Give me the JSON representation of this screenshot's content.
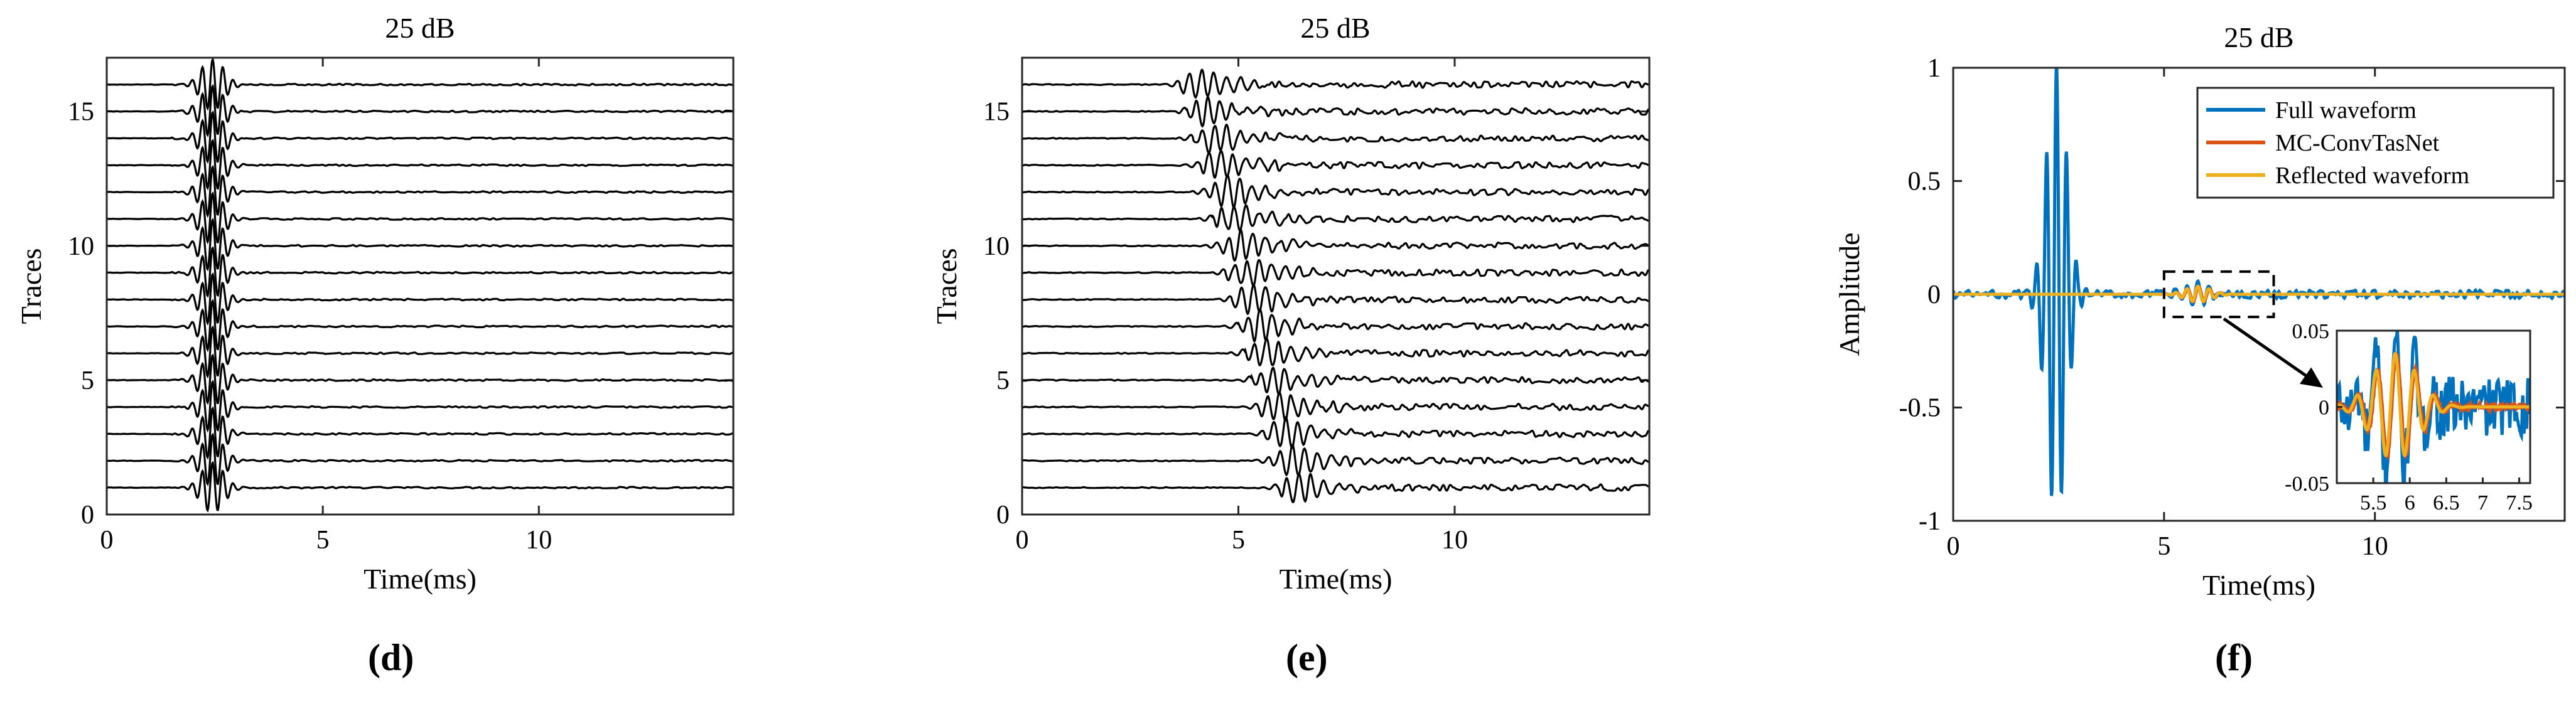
{
  "colors": {
    "trace": "#000000",
    "full_waveform": "#0072BD",
    "mc_convtasnet": "#D95319",
    "reflected_waveform": "#EDB120",
    "axes": "#262626"
  },
  "chart_data": [
    {
      "panel_label": "(d)",
      "type": "line",
      "title": "25 dB",
      "xlabel": "Time(ms)",
      "ylabel": "Traces",
      "xlim": [
        0,
        14.5
      ],
      "ylim": [
        0,
        17
      ],
      "xticks": [
        0,
        5,
        10
      ],
      "yticks": [
        0,
        5,
        10,
        15
      ],
      "grid": false,
      "traces": {
        "count": 16,
        "offsets": [
          1,
          2,
          3,
          4,
          5,
          6,
          7,
          8,
          9,
          10,
          11,
          12,
          13,
          14,
          15,
          16
        ],
        "arrival_ms": [
          2.45,
          2.45,
          2.45,
          2.45,
          2.45,
          2.45,
          2.45,
          2.45,
          2.45,
          2.45,
          2.45,
          2.45,
          2.45,
          2.45,
          2.45,
          2.45
        ],
        "peak_amplitude": 0.95,
        "noise_amplitude": 0.03
      }
    },
    {
      "panel_label": "(e)",
      "type": "line",
      "title": "25 dB",
      "xlabel": "Time(ms)",
      "ylabel": "Traces",
      "xlim": [
        0,
        14.5
      ],
      "ylim": [
        0,
        17
      ],
      "xticks": [
        0,
        5,
        10
      ],
      "yticks": [
        0,
        5,
        10,
        15
      ],
      "grid": false,
      "traces": {
        "count": 16,
        "offsets": [
          1,
          2,
          3,
          4,
          5,
          6,
          7,
          8,
          9,
          10,
          11,
          12,
          13,
          14,
          15,
          16
        ],
        "arrival_ms": [
          6.2,
          6.05,
          5.9,
          5.75,
          5.6,
          5.45,
          5.3,
          5.15,
          5.0,
          4.85,
          4.7,
          4.55,
          4.4,
          4.25,
          4.1,
          3.95
        ],
        "peak_amplitude": 0.5,
        "noise_amplitude": 0.12
      }
    },
    {
      "panel_label": "(f)",
      "type": "line",
      "title": "25 dB",
      "xlabel": "Time(ms)",
      "ylabel": "Amplitude",
      "xlim": [
        0,
        14.5
      ],
      "ylim": [
        -1,
        1
      ],
      "xticks": [
        0,
        5,
        10
      ],
      "yticks": [
        -1,
        -0.5,
        0,
        0.5,
        1
      ],
      "ytick_labels": [
        "-1",
        "-0.5",
        "0",
        "0.5",
        "1"
      ],
      "grid": false,
      "legend_position": "top-right",
      "series": [
        {
          "name": "Full waveform",
          "color": "#0072BD",
          "wavelet_center_ms": 2.45,
          "wavelet_peak": 1.0,
          "reflection_center_ms": 5.8,
          "reflection_peak": 0.045,
          "noise": 0.018
        },
        {
          "name": "MC-ConvTasNet",
          "color": "#D95319",
          "reflection_center_ms": 5.8,
          "reflection_peak": 0.035
        },
        {
          "name": "Reflected waveform",
          "color": "#EDB120",
          "reflection_center_ms": 5.8,
          "reflection_peak": 0.035
        }
      ],
      "zoom_box": {
        "xlim": [
          5.0,
          7.6
        ],
        "ylim": [
          -0.1,
          0.1
        ]
      },
      "inset": {
        "xlim": [
          5.0,
          7.65
        ],
        "ylim": [
          -0.05,
          0.05
        ],
        "xticks": [
          5.5,
          6,
          6.5,
          7,
          7.5
        ],
        "xtick_labels": [
          "5.5",
          "6",
          "6.5",
          "7",
          "7.5"
        ],
        "yticks": [
          -0.05,
          0,
          0.05
        ],
        "ytick_labels": [
          "-0.05",
          "0",
          "0.05"
        ]
      }
    }
  ]
}
